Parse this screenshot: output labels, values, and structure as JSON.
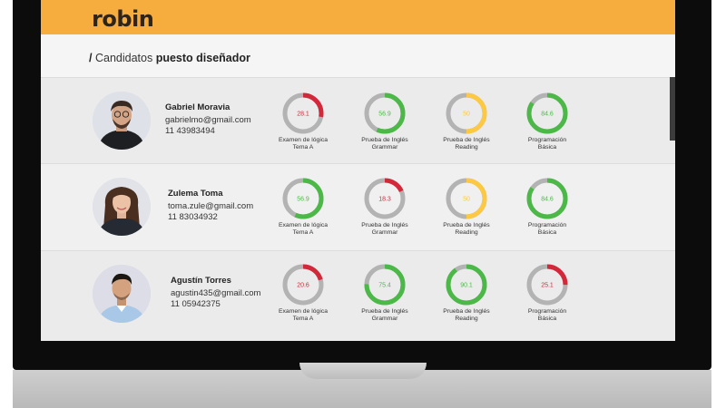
{
  "app": {
    "logo": "robin"
  },
  "breadcrumb": {
    "separator": "/",
    "section": "Candidatos",
    "position": "puesto diseñador"
  },
  "colors": {
    "red": "#d2283a",
    "green": "#4cb848",
    "yellow": "#fdc943",
    "track": "#b3b3b3",
    "header": "#f7ad3e"
  },
  "candidates": [
    {
      "name": "Gabriel Moravia",
      "email": "gabrielmo@gmail.com",
      "phone": "11 43983494",
      "scores": [
        {
          "value": "28.1",
          "pct": 28.1,
          "color": "red",
          "line1": "Examen de lógica",
          "line2": "Tema A"
        },
        {
          "value": "56.9",
          "pct": 56.9,
          "color": "green",
          "line1": "Prueba de Inglés",
          "line2": "Grammar"
        },
        {
          "value": "50",
          "pct": 50,
          "color": "yellow",
          "line1": "Prueba de Inglés",
          "line2": "Reading"
        },
        {
          "value": "84.6",
          "pct": 84.6,
          "color": "green",
          "line1": "Programación",
          "line2": "Básica"
        }
      ]
    },
    {
      "name": "Zulema Toma",
      "email": "toma.zule@gmail.com",
      "phone": "11 83034932",
      "scores": [
        {
          "value": "56.9",
          "pct": 56.9,
          "color": "green",
          "line1": "Examen de lógica",
          "line2": "Tema A"
        },
        {
          "value": "18.3",
          "pct": 18.3,
          "color": "red",
          "line1": "Prueba de Inglés",
          "line2": "Grammar"
        },
        {
          "value": "50",
          "pct": 50,
          "color": "yellow",
          "line1": "Prueba de Inglés",
          "line2": "Reading"
        },
        {
          "value": "84.6",
          "pct": 84.6,
          "color": "green",
          "line1": "Programación",
          "line2": "Básica"
        }
      ]
    },
    {
      "name": "Agustín Torres",
      "email": "agustin435@gmail.com",
      "phone": "11 05942375",
      "scores": [
        {
          "value": "20.6",
          "pct": 20.6,
          "color": "red",
          "line1": "Examen de lógica",
          "line2": "Tema A"
        },
        {
          "value": "75.4",
          "pct": 75.4,
          "color": "green",
          "line1": "Prueba de Inglés",
          "line2": "Grammar"
        },
        {
          "value": "90.1",
          "pct": 90.1,
          "color": "green",
          "line1": "Prueba de Inglés",
          "line2": "Reading"
        },
        {
          "value": "25.1",
          "pct": 25.1,
          "color": "red",
          "line1": "Programación",
          "line2": "Básica"
        }
      ]
    }
  ]
}
